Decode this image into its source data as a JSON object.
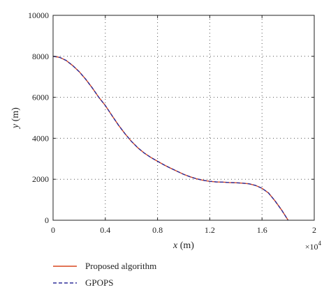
{
  "chart_data": {
    "type": "line",
    "xlabel_var": "x",
    "xlabel_unit": " (m)",
    "ylabel_var": "y",
    "ylabel_unit": " (m)",
    "x_multiplier": "×10",
    "x_multiplier_exp": "4",
    "xlim": [
      0,
      2
    ],
    "ylim": [
      0,
      10000
    ],
    "xticks": [
      "0",
      "0.4",
      "0.8",
      "1.2",
      "1.6",
      "2"
    ],
    "yticks": [
      "0",
      "2000",
      "4000",
      "6000",
      "8000",
      "10000"
    ],
    "grid": true,
    "legend_position": "bottom-left outside",
    "series": [
      {
        "name": "Proposed algorithm",
        "color": "#d9461f",
        "dash": "solid",
        "x": [
          0,
          0.05,
          0.1,
          0.15,
          0.2,
          0.25,
          0.3,
          0.35,
          0.4,
          0.45,
          0.5,
          0.55,
          0.6,
          0.65,
          0.7,
          0.75,
          0.8,
          0.85,
          0.9,
          0.95,
          1.0,
          1.05,
          1.1,
          1.15,
          1.2,
          1.25,
          1.3,
          1.35,
          1.4,
          1.45,
          1.5,
          1.55,
          1.6,
          1.65,
          1.7,
          1.75,
          1.8
        ],
        "y": [
          8000,
          7950,
          7800,
          7550,
          7250,
          6880,
          6460,
          6000,
          5600,
          5120,
          4650,
          4230,
          3850,
          3530,
          3270,
          3060,
          2880,
          2700,
          2540,
          2390,
          2240,
          2120,
          2020,
          1950,
          1900,
          1870,
          1860,
          1840,
          1830,
          1810,
          1780,
          1700,
          1560,
          1330,
          940,
          500,
          0
        ]
      },
      {
        "name": "GPOPS",
        "color": "#2e2e9a",
        "dash": "dashed",
        "x": [
          0,
          0.05,
          0.1,
          0.15,
          0.2,
          0.25,
          0.3,
          0.35,
          0.4,
          0.45,
          0.5,
          0.55,
          0.6,
          0.65,
          0.7,
          0.75,
          0.8,
          0.85,
          0.9,
          0.95,
          1.0,
          1.05,
          1.1,
          1.15,
          1.2,
          1.25,
          1.3,
          1.35,
          1.4,
          1.45,
          1.5,
          1.55,
          1.6,
          1.65,
          1.7,
          1.75,
          1.8
        ],
        "y": [
          8000,
          7950,
          7800,
          7550,
          7250,
          6880,
          6460,
          6000,
          5600,
          5120,
          4650,
          4230,
          3850,
          3530,
          3270,
          3060,
          2880,
          2700,
          2540,
          2390,
          2240,
          2120,
          2020,
          1950,
          1900,
          1870,
          1860,
          1840,
          1830,
          1810,
          1780,
          1700,
          1560,
          1330,
          940,
          500,
          0
        ]
      }
    ]
  }
}
